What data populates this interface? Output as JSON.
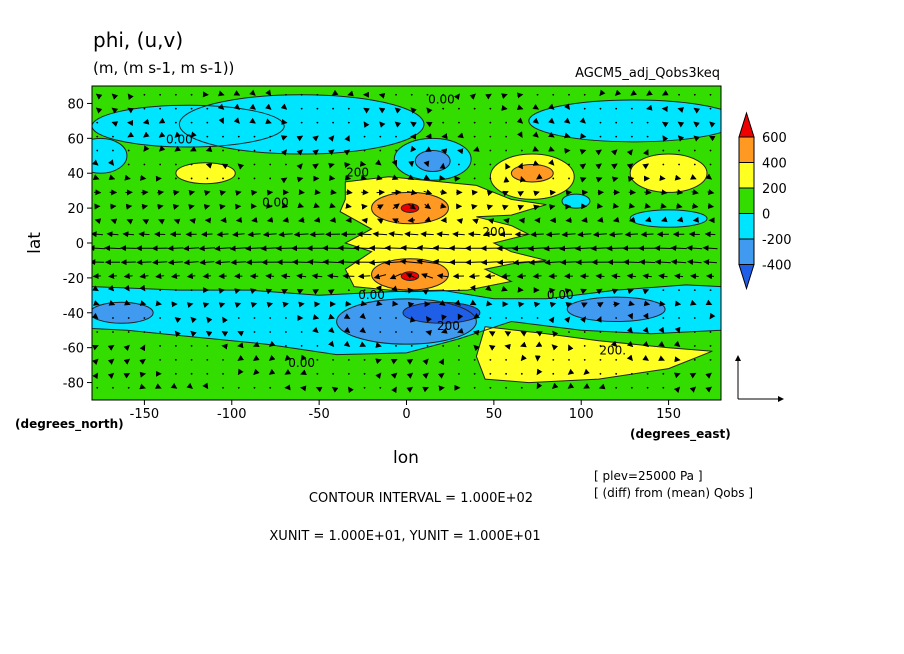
{
  "header": {
    "title": "phi, (u,v)",
    "units": "(m, (m s-1, m s-1))",
    "experiment": "AGCM5_adj_Qobs3keq"
  },
  "footer": {
    "info_line1": "[ plev=25000 Pa ]",
    "info_line2": "[ (diff) from (mean) Qobs ]",
    "contour_interval": "CONTOUR INTERVAL = 1.000E+02",
    "vector_units": "XUNIT = 1.000E+01, YUNIT = 1.000E+01"
  },
  "colors": {
    "below_-400": "#1f5fe8",
    "-400_to_-200": "#3f9af0",
    "-200_to_0": "#00e5ff",
    "0_to_200": "#33dd00",
    "200_to_400": "#ffff22",
    "400_to_600": "#ff9922",
    "above_600": "#ee0000"
  },
  "chart_data": {
    "type": "heatmap",
    "plot_kind": "shaded contour map with wind vectors",
    "xlabel": "lon",
    "ylabel": "lat",
    "xunit_label": "(degrees_east)",
    "yunit_label": "(degrees_north)",
    "xlim": [
      -180,
      180
    ],
    "ylim": [
      -90,
      90
    ],
    "xticks": [
      -150,
      -100,
      -50,
      0,
      50,
      100,
      150
    ],
    "yticks": [
      -80,
      -60,
      -40,
      -20,
      0,
      20,
      40,
      60,
      80
    ],
    "xtick_labels": [
      "-150",
      "-100",
      "-50",
      "0",
      "50",
      "100",
      "150"
    ],
    "ytick_labels": [
      "-80",
      "-60",
      "-40",
      "-20",
      "0",
      "20",
      "40",
      "60",
      "80"
    ],
    "colorbar": {
      "levels": [
        600,
        400,
        200,
        0,
        -200,
        -400
      ],
      "labels": [
        "600",
        "400",
        "200",
        "0",
        "-200",
        "-400"
      ]
    },
    "background_range": "0 to 200",
    "regions": [
      {
        "name": "north-polar-low",
        "kind": "ellipse",
        "lon": -60,
        "lat": 68,
        "dlon": 70,
        "dlat": 17,
        "range": "-200 to 0"
      },
      {
        "name": "north-west-low",
        "kind": "ellipse",
        "lon": -125,
        "lat": 67,
        "dlon": 55,
        "dlat": 12,
        "range": "-200 to 0"
      },
      {
        "name": "north-west-low-2",
        "kind": "ellipse",
        "lon": -175,
        "lat": 50,
        "dlon": 15,
        "dlat": 10,
        "range": "-200 to 0"
      },
      {
        "name": "north-east-low",
        "kind": "ellipse",
        "lon": 130,
        "lat": 70,
        "dlon": 60,
        "dlat": 12,
        "range": "-200 to 0"
      },
      {
        "name": "north-mid-low",
        "kind": "ellipse",
        "lon": 15,
        "lat": 48,
        "dlon": 22,
        "dlat": 12,
        "range": "-200 to 0"
      },
      {
        "name": "north-mid-low-core",
        "kind": "ellipse",
        "lon": 15,
        "lat": 47,
        "dlon": 10,
        "dlat": 6,
        "range": "-400 to -200"
      },
      {
        "name": "small-east-low-1",
        "kind": "ellipse",
        "lon": 97,
        "lat": 24,
        "dlon": 8,
        "dlat": 4,
        "range": "-200 to 0"
      },
      {
        "name": "small-east-low-2",
        "kind": "ellipse",
        "lon": 150,
        "lat": 14,
        "dlon": 22,
        "dlat": 5,
        "range": "-200 to 0"
      },
      {
        "name": "south-low-band",
        "kind": "polygon",
        "points": [
          [
            -180,
            -25
          ],
          [
            -130,
            -27
          ],
          [
            -90,
            -27
          ],
          [
            -50,
            -30
          ],
          [
            -10,
            -28
          ],
          [
            20,
            -27
          ],
          [
            50,
            -32
          ],
          [
            80,
            -32
          ],
          [
            120,
            -27
          ],
          [
            160,
            -24
          ],
          [
            180,
            -25
          ],
          [
            180,
            -50
          ],
          [
            140,
            -52
          ],
          [
            100,
            -50
          ],
          [
            60,
            -45
          ],
          [
            30,
            -55
          ],
          [
            0,
            -63
          ],
          [
            -40,
            -64
          ],
          [
            -80,
            -58
          ],
          [
            -120,
            -54
          ],
          [
            -160,
            -50
          ],
          [
            -180,
            -49
          ]
        ],
        "range": "-200 to 0"
      },
      {
        "name": "south-west-low-core",
        "kind": "ellipse",
        "lon": -163,
        "lat": -40,
        "dlon": 18,
        "dlat": 6,
        "range": "-400 to -200"
      },
      {
        "name": "south-mid-low-core",
        "kind": "ellipse",
        "lon": 0,
        "lat": -45,
        "dlon": 40,
        "dlat": 13,
        "range": "-400 to -200"
      },
      {
        "name": "south-mid-low-inner",
        "kind": "ellipse",
        "lon": 20,
        "lat": -40,
        "dlon": 22,
        "dlat": 6,
        "range": "below -400"
      },
      {
        "name": "south-east-low-core",
        "kind": "ellipse",
        "lon": 120,
        "lat": -38,
        "dlon": 28,
        "dlat": 7,
        "range": "-400 to -200"
      },
      {
        "name": "north-west-high",
        "kind": "ellipse",
        "lon": -115,
        "lat": 40,
        "dlon": 17,
        "dlat": 6,
        "range": "200 to 400"
      },
      {
        "name": "north-east-high-1",
        "kind": "ellipse",
        "lon": 72,
        "lat": 38,
        "dlon": 24,
        "dlat": 13,
        "range": "200 to 400"
      },
      {
        "name": "north-east-high-1-core",
        "kind": "ellipse",
        "lon": 72,
        "lat": 40,
        "dlon": 12,
        "dlat": 5,
        "range": "400 to 600"
      },
      {
        "name": "north-east-high-2",
        "kind": "ellipse",
        "lon": 150,
        "lat": 40,
        "dlon": 22,
        "dlat": 11,
        "range": "200 to 400"
      },
      {
        "name": "central-high",
        "kind": "polygon",
        "points": [
          [
            -35,
            35
          ],
          [
            -10,
            38
          ],
          [
            20,
            35
          ],
          [
            40,
            33
          ],
          [
            60,
            25
          ],
          [
            80,
            22
          ],
          [
            60,
            16
          ],
          [
            40,
            15
          ],
          [
            60,
            10
          ],
          [
            70,
            5
          ],
          [
            50,
            0
          ],
          [
            60,
            -5
          ],
          [
            80,
            -10
          ],
          [
            60,
            -12
          ],
          [
            45,
            -15
          ],
          [
            60,
            -22
          ],
          [
            35,
            -27
          ],
          [
            0,
            -28
          ],
          [
            -30,
            -25
          ],
          [
            -35,
            -15
          ],
          [
            -20,
            -5
          ],
          [
            -35,
            0
          ],
          [
            -20,
            8
          ],
          [
            -38,
            18
          ],
          [
            -35,
            25
          ]
        ],
        "range": "200 to 400"
      },
      {
        "name": "north-central-high-core",
        "kind": "ellipse",
        "lon": 2,
        "lat": 20,
        "dlon": 22,
        "dlat": 9,
        "range": "400 to 600"
      },
      {
        "name": "north-central-high-peak",
        "kind": "ellipse",
        "lon": 2,
        "lat": 20,
        "dlon": 5,
        "dlat": 2.5,
        "range": "above 600"
      },
      {
        "name": "south-central-high-core",
        "kind": "ellipse",
        "lon": 2,
        "lat": -18,
        "dlon": 22,
        "dlat": 9,
        "range": "400 to 600"
      },
      {
        "name": "south-central-high-peak",
        "kind": "ellipse",
        "lon": 2,
        "lat": -19,
        "dlon": 5,
        "dlat": 2.5,
        "range": "above 600"
      },
      {
        "name": "south-east-high",
        "kind": "polygon",
        "points": [
          [
            45,
            -48
          ],
          [
            80,
            -52
          ],
          [
            110,
            -56
          ],
          [
            150,
            -60
          ],
          [
            175,
            -62
          ],
          [
            150,
            -72
          ],
          [
            110,
            -78
          ],
          [
            70,
            -80
          ],
          [
            45,
            -78
          ],
          [
            40,
            -65
          ]
        ],
        "range": "200 to 400"
      }
    ],
    "contour_labels": [
      {
        "text": "0.00",
        "lon": -130,
        "lat": 57
      },
      {
        "text": "0.00",
        "lon": 20,
        "lat": 80
      },
      {
        "text": "0.00",
        "lon": -75,
        "lat": 21
      },
      {
        "text": "200",
        "lon": -28,
        "lat": 38
      },
      {
        "text": "200",
        "lon": 50,
        "lat": 4
      },
      {
        "text": "0.00",
        "lon": -20,
        "lat": -32
      },
      {
        "text": "200",
        "lon": 24,
        "lat": -50
      },
      {
        "text": "0.00",
        "lon": 88,
        "lat": -32
      },
      {
        "text": "200.",
        "lon": 118,
        "lat": -64
      },
      {
        "text": "0.00",
        "lon": -60,
        "lat": -71
      }
    ],
    "vectors": {
      "xunit": 10,
      "yunit": 10,
      "grid_spacing_deg": 10,
      "jets": [
        {
          "lat": -10,
          "u_peak": -30,
          "width": 15,
          "lon_center": 0,
          "lon_width": 150
        },
        {
          "lat": 0,
          "u_peak": -20,
          "width": 15
        },
        {
          "lat": 25,
          "u_peak": 14,
          "width": 10
        },
        {
          "lat": -30,
          "u_peak": 12,
          "width": 8
        }
      ],
      "vortices": [
        {
          "lat": 20,
          "lon": 0,
          "sense": "anticyclonic",
          "strength": 15
        },
        {
          "lat": -18,
          "lon": 0,
          "sense": "anticyclonic",
          "strength": 15
        },
        {
          "lat": 40,
          "lon": 72,
          "sense": "anticyclonic",
          "strength": 8
        },
        {
          "lat": 47,
          "lon": 15,
          "sense": "cyclonic",
          "strength": 8
        },
        {
          "lat": -42,
          "lon": 15,
          "sense": "cyclonic",
          "strength": 10
        },
        {
          "lat": -38,
          "lon": 120,
          "sense": "cyclonic",
          "strength": 6
        },
        {
          "lat": -62,
          "lon": 80,
          "sense": "anticyclonic",
          "strength": 6
        }
      ],
      "reference_vector": {
        "u": 10,
        "v": 10
      }
    }
  }
}
